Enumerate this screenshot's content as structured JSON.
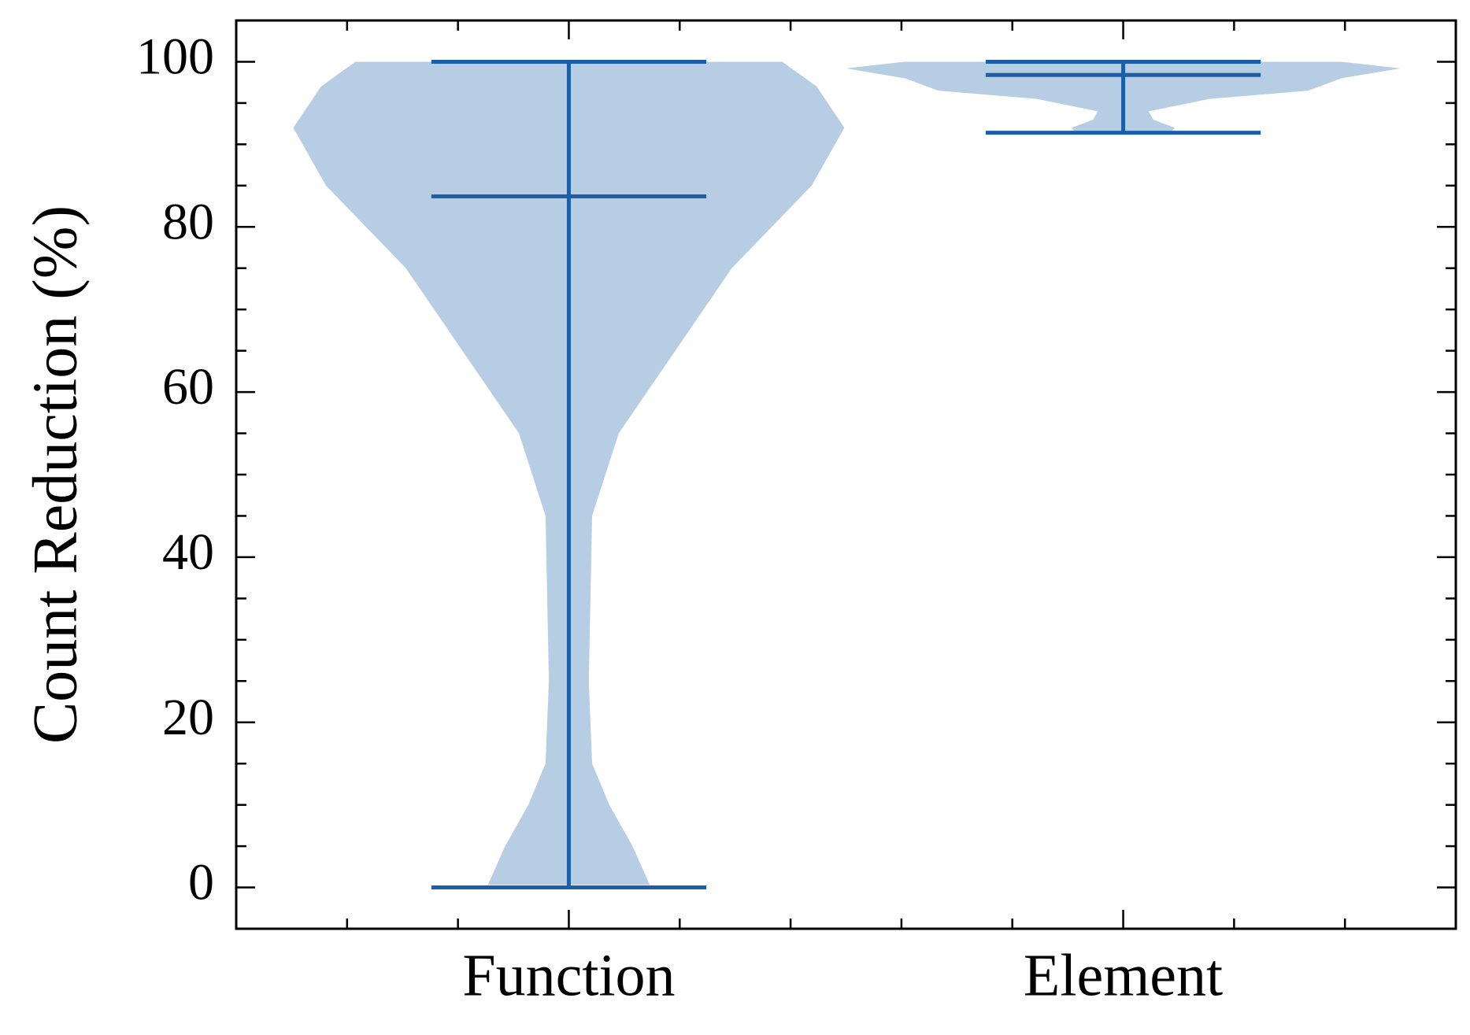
{
  "chart_data": {
    "type": "violin",
    "ylabel": "Count Reduction (%)",
    "categories": [
      "Function",
      "Element"
    ],
    "positions": [
      1,
      2
    ],
    "series": [
      {
        "name": "Function",
        "min": 0,
        "median": 83.7,
        "max": 100,
        "density": {
          "y": [
            0.3,
            5,
            10,
            15,
            25,
            35,
            45,
            55,
            65,
            75,
            85,
            92,
            97,
            100
          ],
          "width": [
            0.146,
            0.115,
            0.073,
            0.042,
            0.036,
            0.039,
            0.042,
            0.09,
            0.192,
            0.294,
            0.438,
            0.497,
            0.447,
            0.385
          ]
        }
      },
      {
        "name": "Element",
        "min": 91.4,
        "median": 98.4,
        "max": 100,
        "density": {
          "y": [
            91.6,
            92,
            93,
            94,
            95.5,
            96.5,
            98,
            99.2,
            100
          ],
          "width": [
            0.088,
            0.093,
            0.054,
            0.046,
            0.156,
            0.334,
            0.394,
            0.5,
            0.394
          ]
        }
      }
    ],
    "body_color": "#b6cde3",
    "line_color": "#1a5fa8",
    "xlim": [
      0.4,
      2.6
    ],
    "xminorticks": [
      0.6,
      0.8,
      1.2,
      1.4,
      1.6,
      1.8,
      2.2,
      2.4
    ],
    "ylim": [
      -5,
      105
    ],
    "yticks": [
      0,
      20,
      40,
      60,
      80,
      100
    ],
    "yminorticks": [
      5,
      10,
      15,
      25,
      30,
      35,
      45,
      50,
      55,
      65,
      70,
      75,
      85,
      90,
      95
    ]
  }
}
